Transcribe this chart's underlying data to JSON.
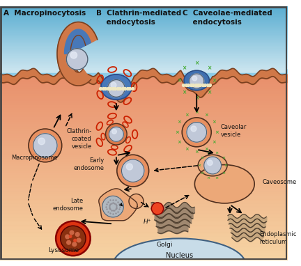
{
  "title_A": "A  Macropinocytosis",
  "title_B": "B  Clathrin-mediated\n    endocytosis",
  "title_C": "C  Caveolae-mediated\n    endocytosis",
  "label_macropinosome": "Macropinosome",
  "label_clathrin": "Clathrin-\ncoated\nvesicle",
  "label_early": "Early\nendosome",
  "label_late": "Late\nendosome",
  "label_lysosome": "Lysosome",
  "label_caveolar": "Caveolar\nvesicle",
  "label_caveosome": "Caveosome",
  "label_er": "Endoplasmic\nreticulum",
  "label_golgi": "Golgi",
  "label_nucleus": "Nucleus",
  "label_h": "H⁺",
  "figsize": [
    4.32,
    3.82
  ],
  "dpi": 100,
  "sky_colors": [
    "#5aaed0",
    "#8dcce8",
    "#b8dff0"
  ],
  "cell_colors": [
    "#e8906a",
    "#f0b888",
    "#f5d4a8"
  ],
  "membrane_fill": "#d07848",
  "membrane_edge": "#7a4020",
  "vesicle_shell": "#e89068",
  "vesicle_inner": "#b8c8d8",
  "sphere_color": "#c0c8d8",
  "sphere_sheen": "#e8eef8",
  "clathrin_red": "#cc2200",
  "green_x": "#44aa33",
  "blue_pit": "#4878b0",
  "blue_deep": "#3060a0",
  "lysosome_red": "#dd3311",
  "lysosome_inner": "#8a3318",
  "golgi_color": "#a08060",
  "nucleus_color": "#c8dce8",
  "red_vesicle": "#ee4422",
  "black_outline": "#1a1a1a",
  "border_color": "#444444"
}
